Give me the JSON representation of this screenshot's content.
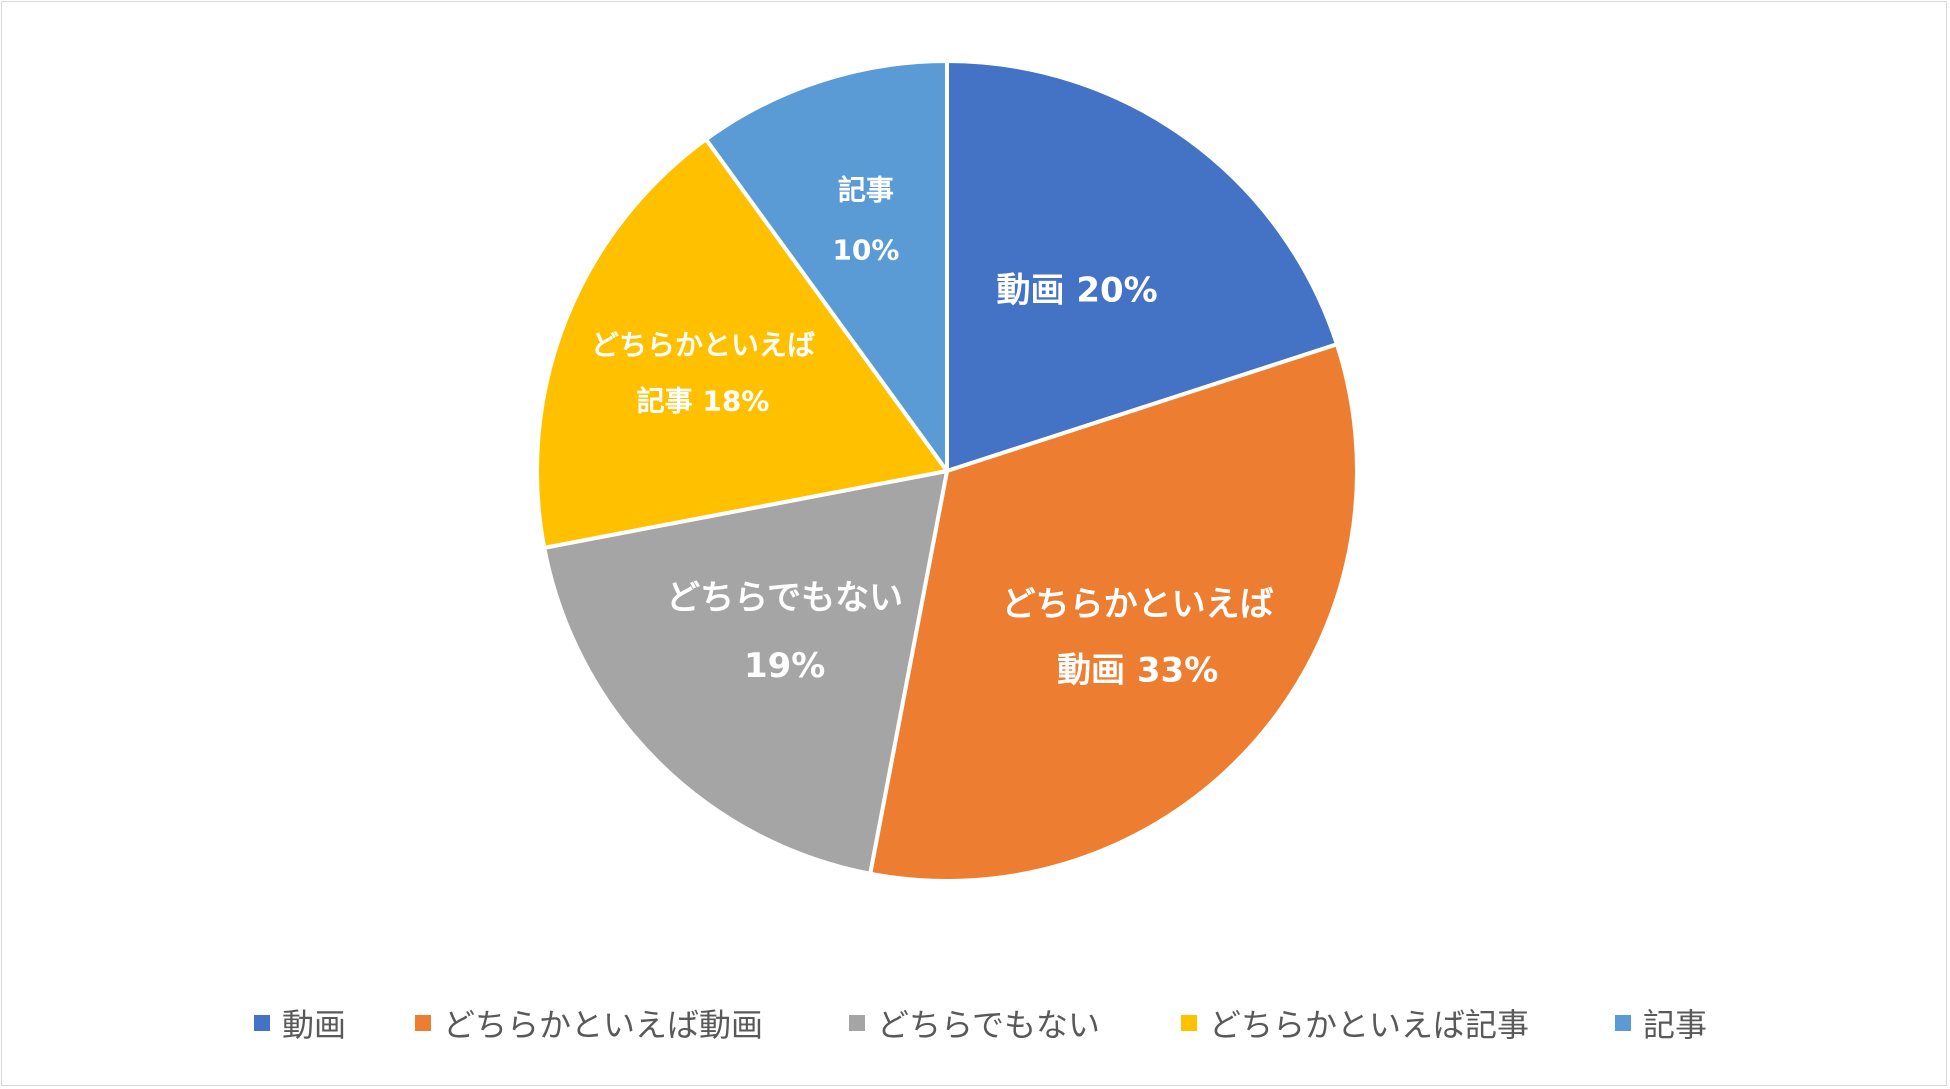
{
  "chart_data": {
    "type": "pie",
    "categories": [
      "動画",
      "どちらかといえば動画",
      "どちらでもない",
      "どちらかといえば記事",
      "記事"
    ],
    "values": [
      20,
      33,
      19,
      18,
      10
    ],
    "unit": "%",
    "colors": [
      "#4472C4",
      "#ED7D31",
      "#A5A5A5",
      "#FFC000",
      "#5B9BD5"
    ],
    "data_labels": [
      [
        "動画 20%"
      ],
      [
        "どちらかといえば",
        "動画 33%"
      ],
      [
        "どちらでもない",
        "19%"
      ],
      [
        "どちらかといえば",
        "記事 18%"
      ],
      [
        "記事",
        "10%"
      ]
    ],
    "start_angle": "12 o'clock",
    "direction": "clockwise",
    "legend": {
      "position": "bottom",
      "entries": [
        "動画",
        "どちらかといえば動画",
        "どちらでもない",
        "どちらかといえば記事",
        "記事"
      ]
    }
  }
}
